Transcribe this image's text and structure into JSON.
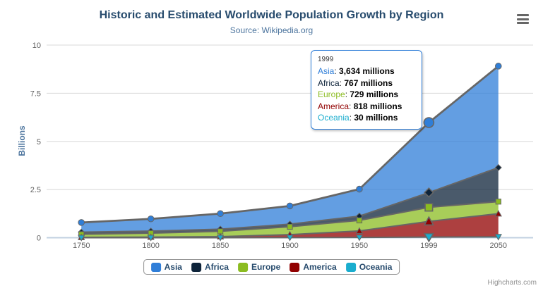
{
  "chart": {
    "title": "Historic and Estimated Worldwide Population Growth by Region",
    "subtitle": "Source: Wikipedia.org",
    "credits": "Highcharts.com",
    "colors": {
      "title": "#274b6d",
      "subtitle": "#4d759e",
      "axis_title": "#4d759e",
      "axis_labels": "#606060",
      "gridline": "#d8d8d8",
      "axis_line": "#c0d0e0",
      "series_line": "#666666",
      "marker_stroke": "#666666",
      "legend_border": "#909090",
      "legend_text": "#274b6d",
      "tooltip_border": "#2f7ed8",
      "credits_text": "#909090"
    }
  },
  "chart_data": {
    "type": "area",
    "stacking": "normal",
    "title": "Historic and Estimated Worldwide Population Growth by Region",
    "subtitle": "Source: Wikipedia.org",
    "categories": [
      "1750",
      "1800",
      "1850",
      "1900",
      "1950",
      "1999",
      "2050"
    ],
    "series": [
      {
        "name": "Asia",
        "color": "#2f7ed8",
        "marker": "circle",
        "values": [
          502,
          635,
          809,
          947,
          1402,
          3634,
          5268
        ]
      },
      {
        "name": "Africa",
        "color": "#0d233a",
        "marker": "diamond",
        "values": [
          106,
          107,
          111,
          133,
          221,
          767,
          1766
        ]
      },
      {
        "name": "Europe",
        "color": "#8bbc21",
        "marker": "square",
        "values": [
          163,
          203,
          276,
          408,
          547,
          729,
          628
        ]
      },
      {
        "name": "America",
        "color": "#910000",
        "marker": "triangle",
        "values": [
          18,
          31,
          54,
          156,
          339,
          818,
          1201
        ]
      },
      {
        "name": "Oceania",
        "color": "#1aadce",
        "marker": "triangle-down",
        "values": [
          2,
          2,
          2,
          6,
          13,
          30,
          46
        ]
      }
    ],
    "values_unit": "millions",
    "xlabel": "",
    "ylabel": "Billions",
    "ylim": [
      0,
      10
    ],
    "yticks": [
      "0",
      "2.5",
      "5",
      "7.5",
      "10"
    ],
    "grid": "horizontal",
    "legend_position": "bottom",
    "fill_opacity": 0.75,
    "hover": {
      "category_index": 5,
      "series": "Asia"
    }
  },
  "tooltip": {
    "header": "1999",
    "rows": [
      {
        "label": "Asia",
        "color": "#2f7ed8",
        "value": "3,634 millions"
      },
      {
        "label": "Africa",
        "color": "#0d233a",
        "value": "767 millions"
      },
      {
        "label": "Europe",
        "color": "#8bbc21",
        "value": "729 millions"
      },
      {
        "label": "America",
        "color": "#910000",
        "value": "818 millions"
      },
      {
        "label": "Oceania",
        "color": "#1aadce",
        "value": "30 millions"
      }
    ]
  }
}
